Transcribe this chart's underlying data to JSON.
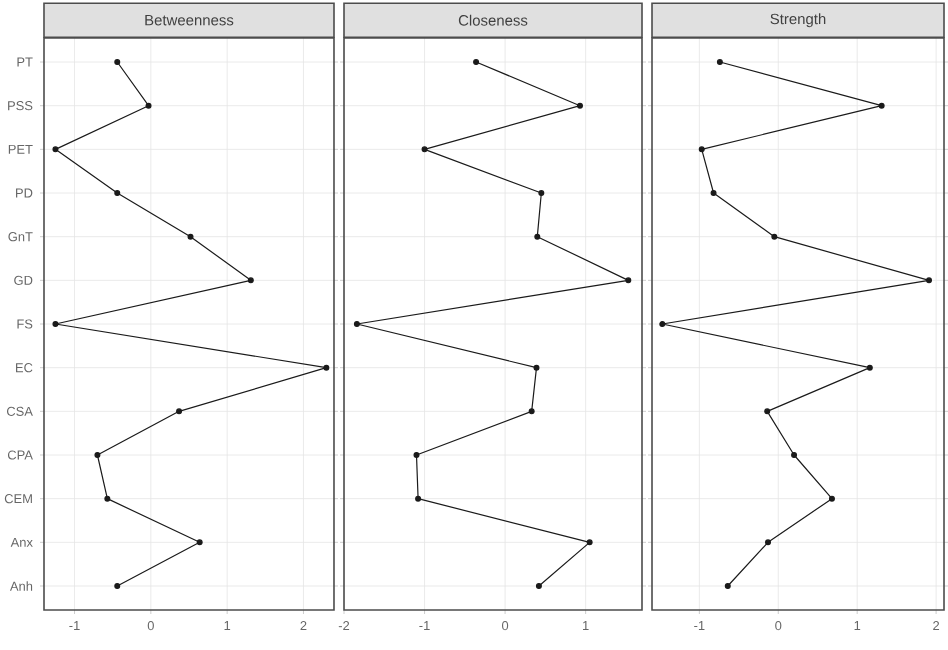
{
  "chart_data": [
    {
      "type": "line",
      "orientation": "horizontal",
      "title": "Betweenness",
      "categories": [
        "PT",
        "PSS",
        "PET",
        "PD",
        "GnT",
        "GD",
        "FS",
        "EC",
        "CSA",
        "CPA",
        "CEM",
        "Anx",
        "Anh"
      ],
      "values": [
        -0.44,
        -0.03,
        -1.25,
        -0.44,
        0.52,
        1.31,
        -1.25,
        2.3,
        0.37,
        -0.7,
        -0.57,
        0.64,
        -0.44
      ],
      "color": "#1a1a1a",
      "marker": "circle",
      "grid": true,
      "xlim": [
        -1.4,
        2.4
      ],
      "xticks": [
        -1,
        0,
        1,
        2
      ]
    },
    {
      "type": "line",
      "orientation": "horizontal",
      "title": "Closeness",
      "values": [
        -0.36,
        0.93,
        -1.0,
        0.45,
        0.4,
        1.53,
        -1.84,
        0.39,
        0.33,
        -1.1,
        -1.08,
        1.05,
        0.42
      ],
      "color": "#1a1a1a",
      "marker": "circle",
      "grid": true,
      "xlim": [
        -2.0,
        1.7
      ],
      "xticks": [
        -2,
        -1,
        0,
        1
      ],
      "tick_labels": "x"
    },
    {
      "type": "line",
      "orientation": "horizontal",
      "title": "Strength",
      "values": [
        -0.74,
        1.31,
        -0.97,
        -0.82,
        -0.05,
        1.91,
        -1.47,
        1.16,
        -0.14,
        0.2,
        0.68,
        -0.13,
        -0.64
      ],
      "color": "#1a1a1a",
      "marker": "circle",
      "grid": true,
      "xlim": [
        -1.6,
        2.1
      ],
      "xticks": [
        -1,
        0,
        1,
        2
      ],
      "tick_labels": "x"
    }
  ]
}
